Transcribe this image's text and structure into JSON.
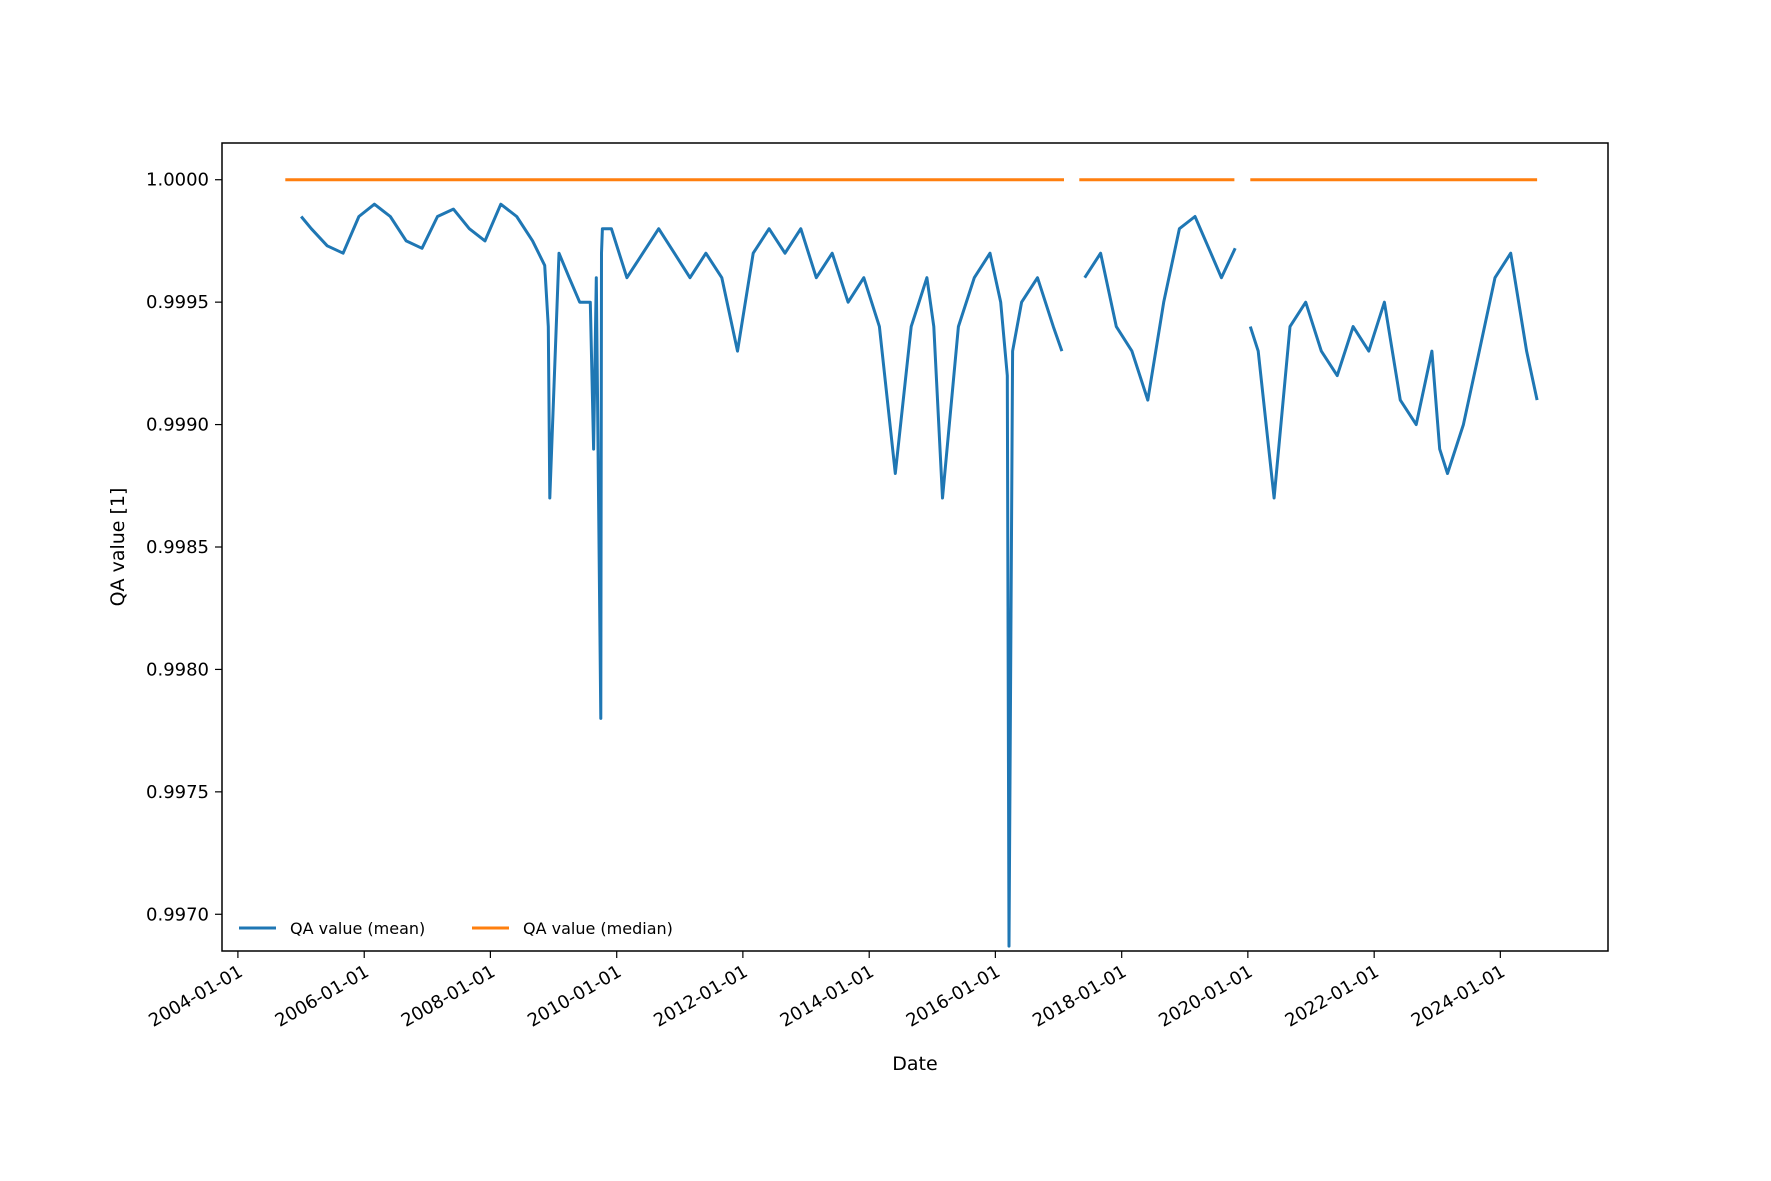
{
  "chart_data": {
    "type": "line",
    "title": "",
    "xlabel": "Date",
    "ylabel": "QA value [1]",
    "x_ticks": [
      "2004-01-01",
      "2006-01-01",
      "2008-01-01",
      "2010-01-01",
      "2012-01-01",
      "2014-01-01",
      "2016-01-01",
      "2018-01-01",
      "2020-01-01",
      "2022-01-01",
      "2024-01-01"
    ],
    "y_ticks": [
      "0.9970",
      "0.9975",
      "0.9980",
      "0.9985",
      "0.9990",
      "0.9995",
      "1.0000"
    ],
    "xlim": [
      "2003-10-01",
      "2025-09-15"
    ],
    "ylim": [
      0.99685,
      1.00015
    ],
    "grid": false,
    "legend_position": "lower-left",
    "series": [
      {
        "name": "QA value (mean)",
        "color": "#1f77b4",
        "x": [
          "2005-01-01",
          "2005-03-01",
          "2005-06-01",
          "2005-09-01",
          "2005-12-01",
          "2006-03-01",
          "2006-06-01",
          "2006-09-01",
          "2006-12-01",
          "2007-03-01",
          "2007-06-01",
          "2007-09-01",
          "2007-12-01",
          "2008-03-01",
          "2008-06-01",
          "2008-09-01",
          "2008-11-10",
          "2008-12-01",
          "2008-12-10",
          "2009-02-01",
          "2009-04-01",
          "2009-06-01",
          "2009-08-01",
          "2009-08-20",
          "2009-09-05",
          "2009-10-01",
          "2009-10-05",
          "2009-10-10",
          "2009-12-01",
          "2010-03-01",
          "2010-06-01",
          "2010-09-01",
          "2010-12-01",
          "2011-03-01",
          "2011-06-01",
          "2011-09-01",
          "2011-12-01",
          "2012-03-01",
          "2012-06-01",
          "2012-09-01",
          "2012-12-01",
          "2013-03-01",
          "2013-06-01",
          "2013-09-01",
          "2013-12-01",
          "2014-03-01",
          "2014-06-01",
          "2014-09-01",
          "2014-12-01",
          "2015-01-10",
          "2015-03-01",
          "2015-06-01",
          "2015-09-01",
          "2015-12-01",
          "2016-02-01",
          "2016-03-10",
          "2016-03-20",
          "2016-04-10",
          "2016-06-01",
          "2016-09-01",
          "2016-12-01",
          "2017-01-20",
          "2017-06-01",
          "2017-09-01",
          "2017-12-01",
          "2018-03-01",
          "2018-06-01",
          "2018-09-01",
          "2018-12-01",
          "2019-03-01",
          "2019-06-01",
          "2019-08-01",
          "2019-10-20",
          "2020-01-15",
          "2020-03-01",
          "2020-05-01",
          "2020-06-01",
          "2020-09-01",
          "2020-12-01",
          "2021-03-01",
          "2021-06-01",
          "2021-09-01",
          "2021-12-01",
          "2022-03-01",
          "2022-06-01",
          "2022-09-01",
          "2022-12-01",
          "2023-01-15",
          "2023-03-01",
          "2023-06-01",
          "2023-09-01",
          "2023-12-01",
          "2024-03-01",
          "2024-06-01",
          "2024-08-01"
        ],
        "values": [
          0.99985,
          0.9998,
          0.99973,
          0.9997,
          0.99985,
          0.9999,
          0.99985,
          0.99975,
          0.99972,
          0.99985,
          0.99988,
          0.9998,
          0.99975,
          0.9999,
          0.99985,
          0.99975,
          0.99965,
          0.9994,
          0.9987,
          0.9997,
          0.9996,
          0.9995,
          0.9995,
          0.9989,
          0.9996,
          0.9978,
          0.9997,
          0.9998,
          0.9998,
          0.9996,
          0.9997,
          0.9998,
          0.9997,
          0.9996,
          0.9997,
          0.9996,
          0.9993,
          0.9997,
          0.9998,
          0.9997,
          0.9998,
          0.9996,
          0.9997,
          0.9995,
          0.9996,
          0.9994,
          0.9988,
          0.9994,
          0.9996,
          0.9994,
          0.9987,
          0.9994,
          0.9996,
          0.9997,
          0.9995,
          0.9992,
          0.99687,
          0.9993,
          0.9995,
          0.9996,
          0.9994,
          0.9993,
          0.9996,
          0.9997,
          0.9994,
          0.9993,
          0.9991,
          0.9995,
          0.9998,
          0.99985,
          0.9997,
          0.9996,
          0.99972,
          0.9994,
          0.9993,
          0.9989,
          0.9987,
          0.9994,
          0.9995,
          0.9993,
          0.9992,
          0.9994,
          0.9993,
          0.9995,
          0.9991,
          0.999,
          0.9993,
          0.9989,
          0.9988,
          0.999,
          0.9993,
          0.9996,
          0.9997,
          0.9993,
          0.9991
        ],
        "segment_breaks_after": [
          "2017-01-20",
          "2019-10-20"
        ]
      },
      {
        "name": "QA value (median)",
        "color": "#ff7f0e",
        "x": [
          "2004-10-01",
          "2017-02-01",
          "2017-05-01",
          "2019-10-15",
          "2020-01-15",
          "2024-08-01"
        ],
        "values": [
          1.0,
          1.0,
          1.0,
          1.0,
          1.0,
          1.0
        ],
        "segment_breaks_after": [
          "2017-02-01",
          "2019-10-15"
        ]
      }
    ]
  }
}
